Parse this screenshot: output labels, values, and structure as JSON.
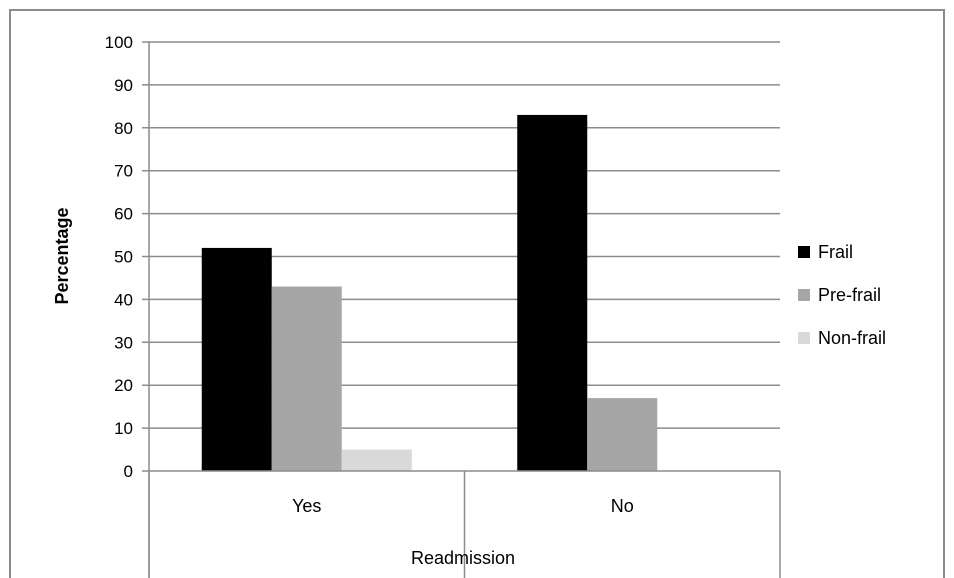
{
  "chart_data": {
    "type": "bar",
    "categories": [
      "Yes",
      "No"
    ],
    "series": [
      {
        "name": "Frail",
        "values": [
          52,
          83
        ],
        "color": "#000000"
      },
      {
        "name": "Pre-frail",
        "values": [
          43,
          17
        ],
        "color": "#a6a6a6"
      },
      {
        "name": "Non-frail",
        "values": [
          5,
          0
        ],
        "color": "#d9d9d9"
      }
    ],
    "xlabel": "Readmission",
    "ylabel": "Percentage",
    "ylim": [
      0,
      100
    ],
    "yticks": [
      "0",
      "10",
      "20",
      "30",
      "40",
      "50",
      "60",
      "70",
      "80",
      "90",
      "100"
    ],
    "grid": true,
    "legend_position": "right"
  }
}
